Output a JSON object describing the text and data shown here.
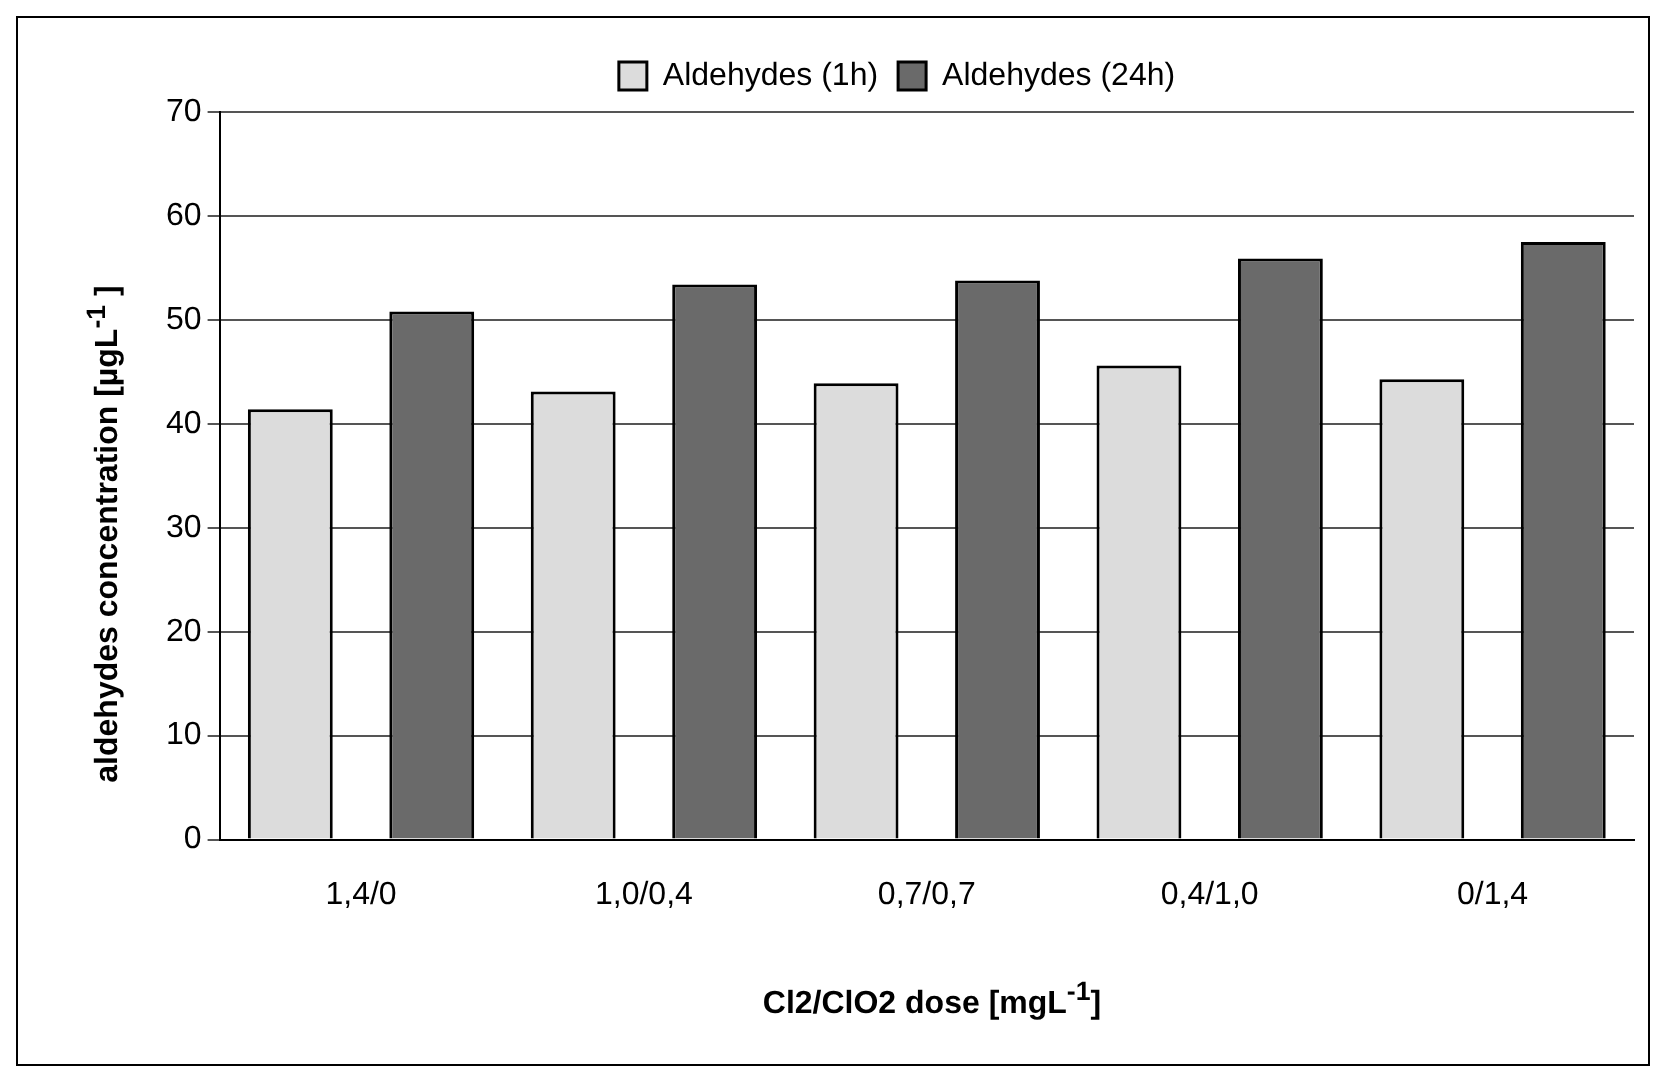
{
  "chart_data": {
    "type": "bar",
    "xlabel": "Cl2/ClO2 dose [mgL$^{-1}$]",
    "ylabel": "aldehydes concentration [µgL$^{-1}$ ]",
    "categories": [
      "1,4/0",
      "1,0/0,4",
      "0,7/0,7",
      "0,4/1,0",
      "0/1,4"
    ],
    "series": [
      {
        "name": "Aldehydes (1h)",
        "color": "#dcdcdc",
        "values": [
          41.4,
          43.1,
          43.9,
          45.6,
          44.3
        ]
      },
      {
        "name": "Aldehydes (24h)",
        "color": "#6a6a6a",
        "values": [
          50.8,
          53.4,
          53.8,
          55.9,
          57.5
        ]
      }
    ],
    "ylim": [
      0,
      70
    ],
    "yticks": [
      0,
      10,
      20,
      30,
      40,
      50,
      60,
      70
    ],
    "grid": "y",
    "legend": "top"
  }
}
